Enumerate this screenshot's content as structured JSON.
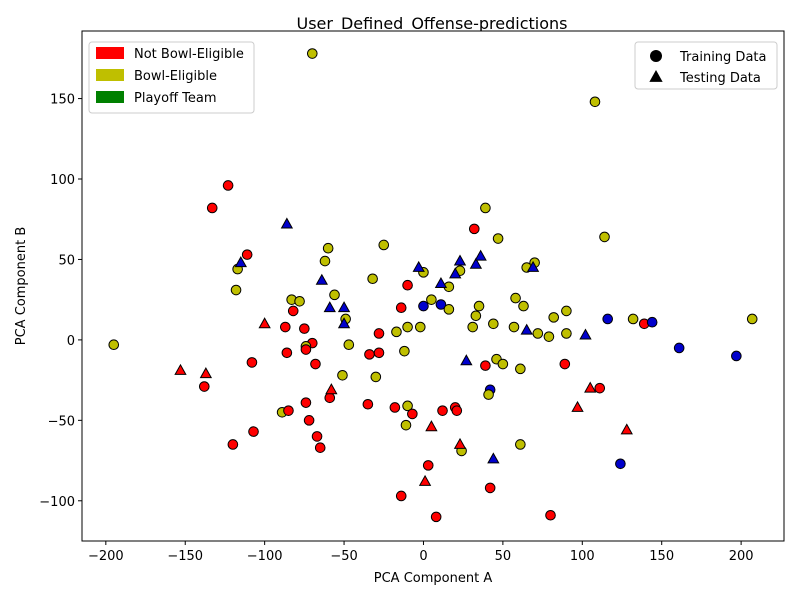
{
  "chart_data": {
    "type": "scatter",
    "title": "User_Defined_Offense-predictions",
    "xlabel": "PCA Component A",
    "ylabel": "PCA Component B",
    "xlim": [
      -215,
      227
    ],
    "ylim": [
      -125,
      192
    ],
    "xticks": [
      -200,
      -150,
      -100,
      -50,
      0,
      50,
      100,
      150,
      200
    ],
    "yticks": [
      -100,
      -50,
      0,
      50,
      100,
      150
    ],
    "grid": false,
    "colors": {
      "not_bowl_eligible": "#ff0000",
      "bowl_eligible": "#bfbf00",
      "playoff": "#0000cc",
      "playoff_legend": "#008000"
    },
    "legend_categories": {
      "position": "top-left",
      "entries": [
        {
          "label": "Not Bowl-Eligible",
          "color": "#ff0000"
        },
        {
          "label": "Bowl-Eligible",
          "color": "#bfbf00"
        },
        {
          "label": "Playoff Team",
          "color": "#008000"
        }
      ]
    },
    "legend_markers": {
      "position": "top-right",
      "entries": [
        {
          "label": "Training Data",
          "marker": "circle"
        },
        {
          "label": "Testing Data",
          "marker": "triangle"
        }
      ]
    },
    "series": [
      {
        "name": "Training Data",
        "marker": "circle",
        "points": [
          {
            "x": -195,
            "y": -3,
            "c": "bowl_eligible"
          },
          {
            "x": -70,
            "y": 178,
            "c": "bowl_eligible"
          },
          {
            "x": 108,
            "y": 148,
            "c": "bowl_eligible"
          },
          {
            "x": -123,
            "y": 96,
            "c": "not_bowl_eligible"
          },
          {
            "x": -133,
            "y": 82,
            "c": "not_bowl_eligible"
          },
          {
            "x": -111,
            "y": 53,
            "c": "not_bowl_eligible"
          },
          {
            "x": -117,
            "y": 44,
            "c": "bowl_eligible"
          },
          {
            "x": -118,
            "y": 31,
            "c": "bowl_eligible"
          },
          {
            "x": -83,
            "y": 25,
            "c": "bowl_eligible"
          },
          {
            "x": -78,
            "y": 24,
            "c": "bowl_eligible"
          },
          {
            "x": -82,
            "y": 18,
            "c": "not_bowl_eligible"
          },
          {
            "x": -87,
            "y": 8,
            "c": "not_bowl_eligible"
          },
          {
            "x": -75,
            "y": 7,
            "c": "not_bowl_eligible"
          },
          {
            "x": -86,
            "y": -8,
            "c": "not_bowl_eligible"
          },
          {
            "x": -70,
            "y": -2,
            "c": "not_bowl_eligible"
          },
          {
            "x": -74,
            "y": -4,
            "c": "bowl_eligible"
          },
          {
            "x": -74,
            "y": -6,
            "c": "not_bowl_eligible"
          },
          {
            "x": -68,
            "y": -15,
            "c": "not_bowl_eligible"
          },
          {
            "x": -108,
            "y": -14,
            "c": "not_bowl_eligible"
          },
          {
            "x": -138,
            "y": -29,
            "c": "not_bowl_eligible"
          },
          {
            "x": -89,
            "y": -45,
            "c": "bowl_eligible"
          },
          {
            "x": -85,
            "y": -44,
            "c": "not_bowl_eligible"
          },
          {
            "x": -74,
            "y": -39,
            "c": "not_bowl_eligible"
          },
          {
            "x": -72,
            "y": -50,
            "c": "not_bowl_eligible"
          },
          {
            "x": -67,
            "y": -60,
            "c": "not_bowl_eligible"
          },
          {
            "x": -65,
            "y": -67,
            "c": "not_bowl_eligible"
          },
          {
            "x": -107,
            "y": -57,
            "c": "not_bowl_eligible"
          },
          {
            "x": -120,
            "y": -65,
            "c": "not_bowl_eligible"
          },
          {
            "x": -62,
            "y": 49,
            "c": "bowl_eligible"
          },
          {
            "x": -60,
            "y": 57,
            "c": "bowl_eligible"
          },
          {
            "x": -56,
            "y": 28,
            "c": "bowl_eligible"
          },
          {
            "x": -49,
            "y": 13,
            "c": "bowl_eligible"
          },
          {
            "x": -47,
            "y": -3,
            "c": "bowl_eligible"
          },
          {
            "x": -51,
            "y": -22,
            "c": "bowl_eligible"
          },
          {
            "x": -59,
            "y": -36,
            "c": "not_bowl_eligible"
          },
          {
            "x": -32,
            "y": 38,
            "c": "bowl_eligible"
          },
          {
            "x": -25,
            "y": 59,
            "c": "bowl_eligible"
          },
          {
            "x": -28,
            "y": 4,
            "c": "not_bowl_eligible"
          },
          {
            "x": -34,
            "y": -9,
            "c": "not_bowl_eligible"
          },
          {
            "x": -28,
            "y": -8,
            "c": "not_bowl_eligible"
          },
          {
            "x": -30,
            "y": -23,
            "c": "bowl_eligible"
          },
          {
            "x": -35,
            "y": -40,
            "c": "not_bowl_eligible"
          },
          {
            "x": -18,
            "y": -42,
            "c": "not_bowl_eligible"
          },
          {
            "x": -10,
            "y": -41,
            "c": "bowl_eligible"
          },
          {
            "x": -7,
            "y": -46,
            "c": "not_bowl_eligible"
          },
          {
            "x": -11,
            "y": -53,
            "c": "bowl_eligible"
          },
          {
            "x": -14,
            "y": -97,
            "c": "not_bowl_eligible"
          },
          {
            "x": 3,
            "y": -78,
            "c": "not_bowl_eligible"
          },
          {
            "x": 8,
            "y": -110,
            "c": "not_bowl_eligible"
          },
          {
            "x": -10,
            "y": 34,
            "c": "not_bowl_eligible"
          },
          {
            "x": -14,
            "y": 20,
            "c": "not_bowl_eligible"
          },
          {
            "x": -17,
            "y": 5,
            "c": "bowl_eligible"
          },
          {
            "x": -10,
            "y": 8,
            "c": "bowl_eligible"
          },
          {
            "x": -12,
            "y": -7,
            "c": "bowl_eligible"
          },
          {
            "x": -2,
            "y": 8,
            "c": "bowl_eligible"
          },
          {
            "x": 0,
            "y": 42,
            "c": "bowl_eligible"
          },
          {
            "x": 0,
            "y": 21,
            "c": "playoff"
          },
          {
            "x": 5,
            "y": 25,
            "c": "bowl_eligible"
          },
          {
            "x": 11,
            "y": 22,
            "c": "playoff"
          },
          {
            "x": 16,
            "y": 19,
            "c": "bowl_eligible"
          },
          {
            "x": 16,
            "y": 33,
            "c": "bowl_eligible"
          },
          {
            "x": 23,
            "y": 43,
            "c": "bowl_eligible"
          },
          {
            "x": 32,
            "y": 69,
            "c": "not_bowl_eligible"
          },
          {
            "x": 39,
            "y": 82,
            "c": "bowl_eligible"
          },
          {
            "x": 47,
            "y": 63,
            "c": "bowl_eligible"
          },
          {
            "x": 35,
            "y": 21,
            "c": "bowl_eligible"
          },
          {
            "x": 33,
            "y": 15,
            "c": "bowl_eligible"
          },
          {
            "x": 31,
            "y": 8,
            "c": "bowl_eligible"
          },
          {
            "x": 44,
            "y": 10,
            "c": "bowl_eligible"
          },
          {
            "x": 57,
            "y": 8,
            "c": "bowl_eligible"
          },
          {
            "x": 58,
            "y": 26,
            "c": "bowl_eligible"
          },
          {
            "x": 63,
            "y": 21,
            "c": "bowl_eligible"
          },
          {
            "x": 65,
            "y": 45,
            "c": "bowl_eligible"
          },
          {
            "x": 70,
            "y": 48,
            "c": "bowl_eligible"
          },
          {
            "x": 46,
            "y": -12,
            "c": "bowl_eligible"
          },
          {
            "x": 50,
            "y": -15,
            "c": "bowl_eligible"
          },
          {
            "x": 39,
            "y": -16,
            "c": "not_bowl_eligible"
          },
          {
            "x": 42,
            "y": -31,
            "c": "playoff"
          },
          {
            "x": 41,
            "y": -34,
            "c": "bowl_eligible"
          },
          {
            "x": 12,
            "y": -44,
            "c": "not_bowl_eligible"
          },
          {
            "x": 20,
            "y": -42,
            "c": "not_bowl_eligible"
          },
          {
            "x": 21,
            "y": -44,
            "c": "not_bowl_eligible"
          },
          {
            "x": 24,
            "y": -69,
            "c": "bowl_eligible"
          },
          {
            "x": 61,
            "y": -18,
            "c": "bowl_eligible"
          },
          {
            "x": 61,
            "y": -65,
            "c": "bowl_eligible"
          },
          {
            "x": 42,
            "y": -92,
            "c": "not_bowl_eligible"
          },
          {
            "x": 72,
            "y": 4,
            "c": "bowl_eligible"
          },
          {
            "x": 79,
            "y": 2,
            "c": "bowl_eligible"
          },
          {
            "x": 82,
            "y": 14,
            "c": "bowl_eligible"
          },
          {
            "x": 90,
            "y": 18,
            "c": "bowl_eligible"
          },
          {
            "x": 90,
            "y": 4,
            "c": "bowl_eligible"
          },
          {
            "x": 89,
            "y": -15,
            "c": "not_bowl_eligible"
          },
          {
            "x": 114,
            "y": 64,
            "c": "bowl_eligible"
          },
          {
            "x": 116,
            "y": 13,
            "c": "playoff"
          },
          {
            "x": 111,
            "y": -30,
            "c": "not_bowl_eligible"
          },
          {
            "x": 124,
            "y": -77,
            "c": "playoff"
          },
          {
            "x": 80,
            "y": -109,
            "c": "not_bowl_eligible"
          },
          {
            "x": 132,
            "y": 13,
            "c": "bowl_eligible"
          },
          {
            "x": 139,
            "y": 10,
            "c": "not_bowl_eligible"
          },
          {
            "x": 144,
            "y": 11,
            "c": "playoff"
          },
          {
            "x": 161,
            "y": -5,
            "c": "playoff"
          },
          {
            "x": 197,
            "y": -10,
            "c": "playoff"
          },
          {
            "x": 207,
            "y": 13,
            "c": "bowl_eligible"
          }
        ]
      },
      {
        "name": "Testing Data",
        "marker": "triangle",
        "points": [
          {
            "x": -86,
            "y": 72,
            "c": "playoff"
          },
          {
            "x": -115,
            "y": 48,
            "c": "playoff"
          },
          {
            "x": -64,
            "y": 37,
            "c": "playoff"
          },
          {
            "x": -59,
            "y": 20,
            "c": "playoff"
          },
          {
            "x": -50,
            "y": 20,
            "c": "playoff"
          },
          {
            "x": -50,
            "y": 10,
            "c": "playoff"
          },
          {
            "x": -100,
            "y": 10,
            "c": "not_bowl_eligible"
          },
          {
            "x": -153,
            "y": -19,
            "c": "not_bowl_eligible"
          },
          {
            "x": -137,
            "y": -21,
            "c": "not_bowl_eligible"
          },
          {
            "x": -58,
            "y": -31,
            "c": "not_bowl_eligible"
          },
          {
            "x": -3,
            "y": 45,
            "c": "playoff"
          },
          {
            "x": 11,
            "y": 35,
            "c": "playoff"
          },
          {
            "x": 20,
            "y": 41,
            "c": "playoff"
          },
          {
            "x": 23,
            "y": 49,
            "c": "playoff"
          },
          {
            "x": 33,
            "y": 47,
            "c": "playoff"
          },
          {
            "x": 36,
            "y": 52,
            "c": "playoff"
          },
          {
            "x": 27,
            "y": -13,
            "c": "playoff"
          },
          {
            "x": 5,
            "y": -54,
            "c": "not_bowl_eligible"
          },
          {
            "x": 1,
            "y": -88,
            "c": "not_bowl_eligible"
          },
          {
            "x": 23,
            "y": -65,
            "c": "not_bowl_eligible"
          },
          {
            "x": 44,
            "y": -74,
            "c": "playoff"
          },
          {
            "x": 65,
            "y": 6,
            "c": "playoff"
          },
          {
            "x": 69,
            "y": 45,
            "c": "playoff"
          },
          {
            "x": 102,
            "y": 3,
            "c": "playoff"
          },
          {
            "x": 97,
            "y": -42,
            "c": "not_bowl_eligible"
          },
          {
            "x": 105,
            "y": -30,
            "c": "not_bowl_eligible"
          },
          {
            "x": 128,
            "y": -56,
            "c": "not_bowl_eligible"
          }
        ]
      }
    ]
  }
}
